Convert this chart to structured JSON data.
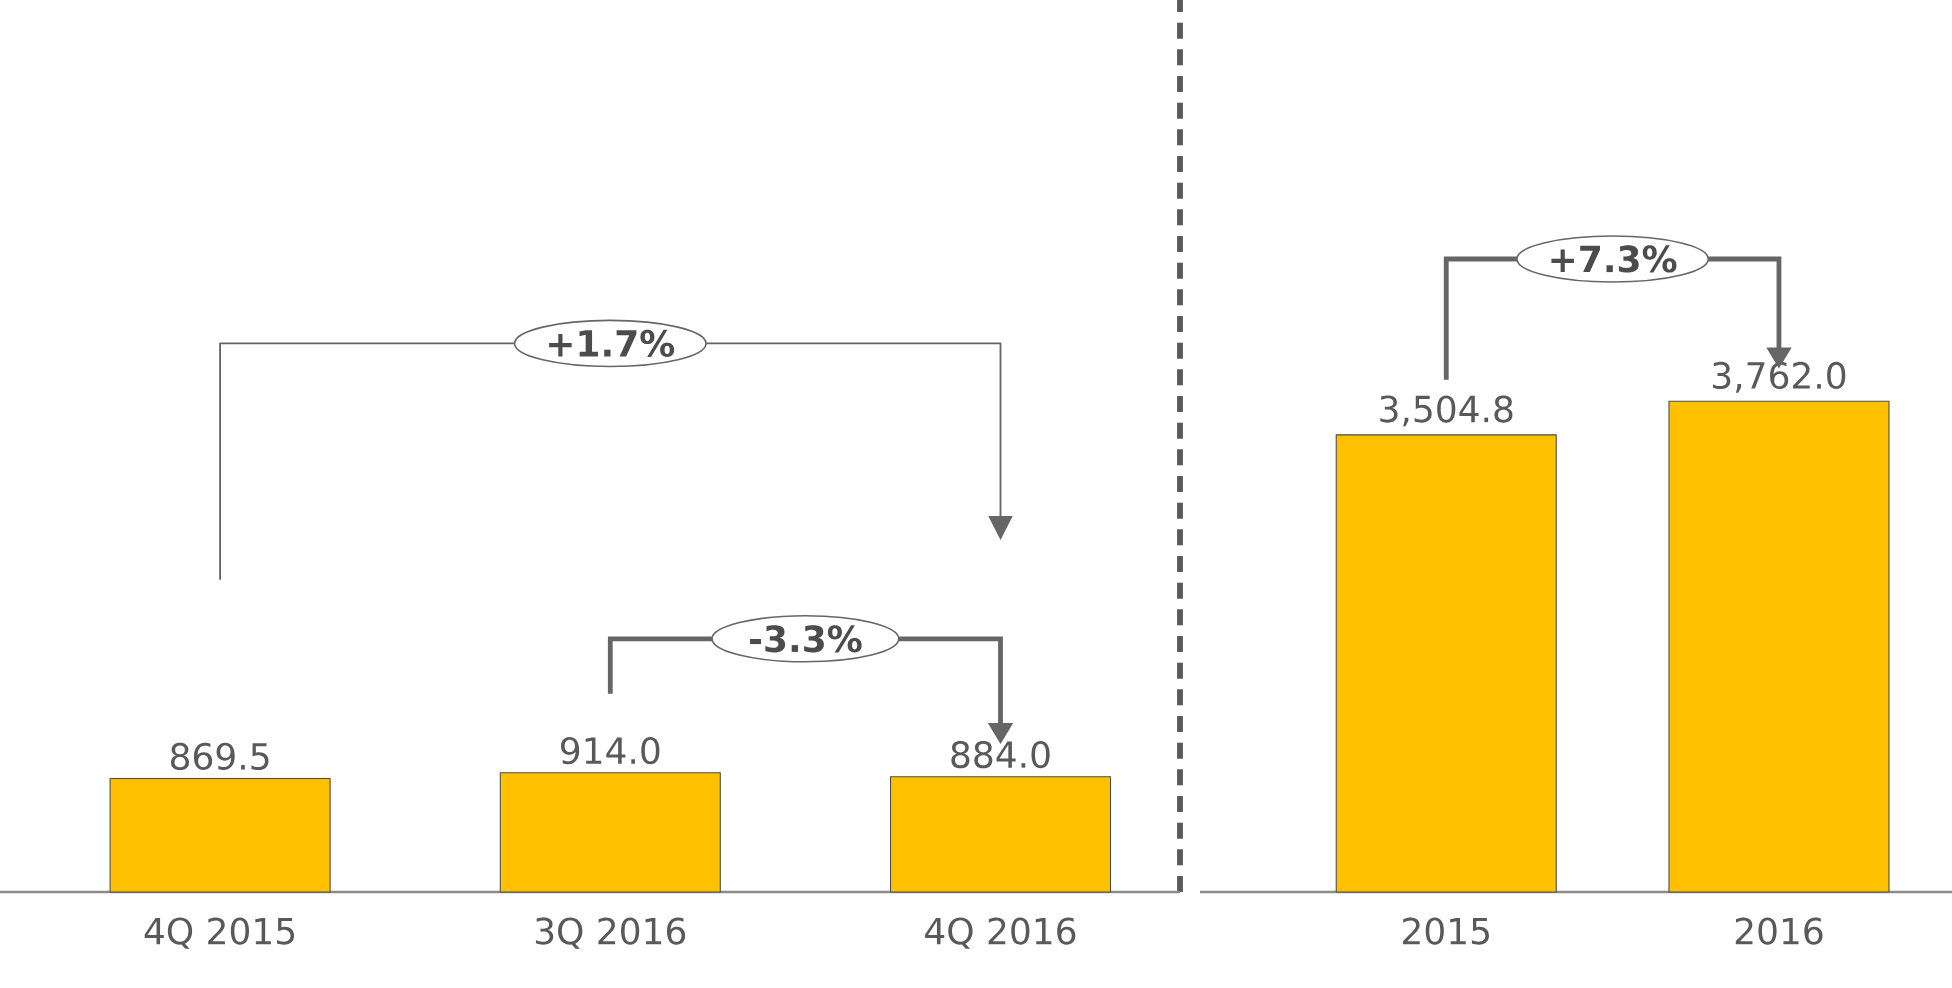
{
  "chart_data": [
    {
      "type": "bar",
      "categories": [
        "4Q 2015",
        "3Q 2016",
        "4Q 2016"
      ],
      "values": [
        869.5,
        914.0,
        884.0
      ],
      "value_labels": [
        "869.5",
        "914.0",
        "884.0"
      ],
      "color": "#ffc000",
      "annotations": [
        "+1.7%",
        "-3.3%"
      ]
    },
    {
      "type": "bar",
      "categories": [
        "2015",
        "2016"
      ],
      "values": [
        3504.8,
        3762.0
      ],
      "value_labels": [
        "3,504.8",
        "3,762.0"
      ],
      "color": "#ffc000",
      "annotations": [
        "+7.3%"
      ]
    }
  ]
}
